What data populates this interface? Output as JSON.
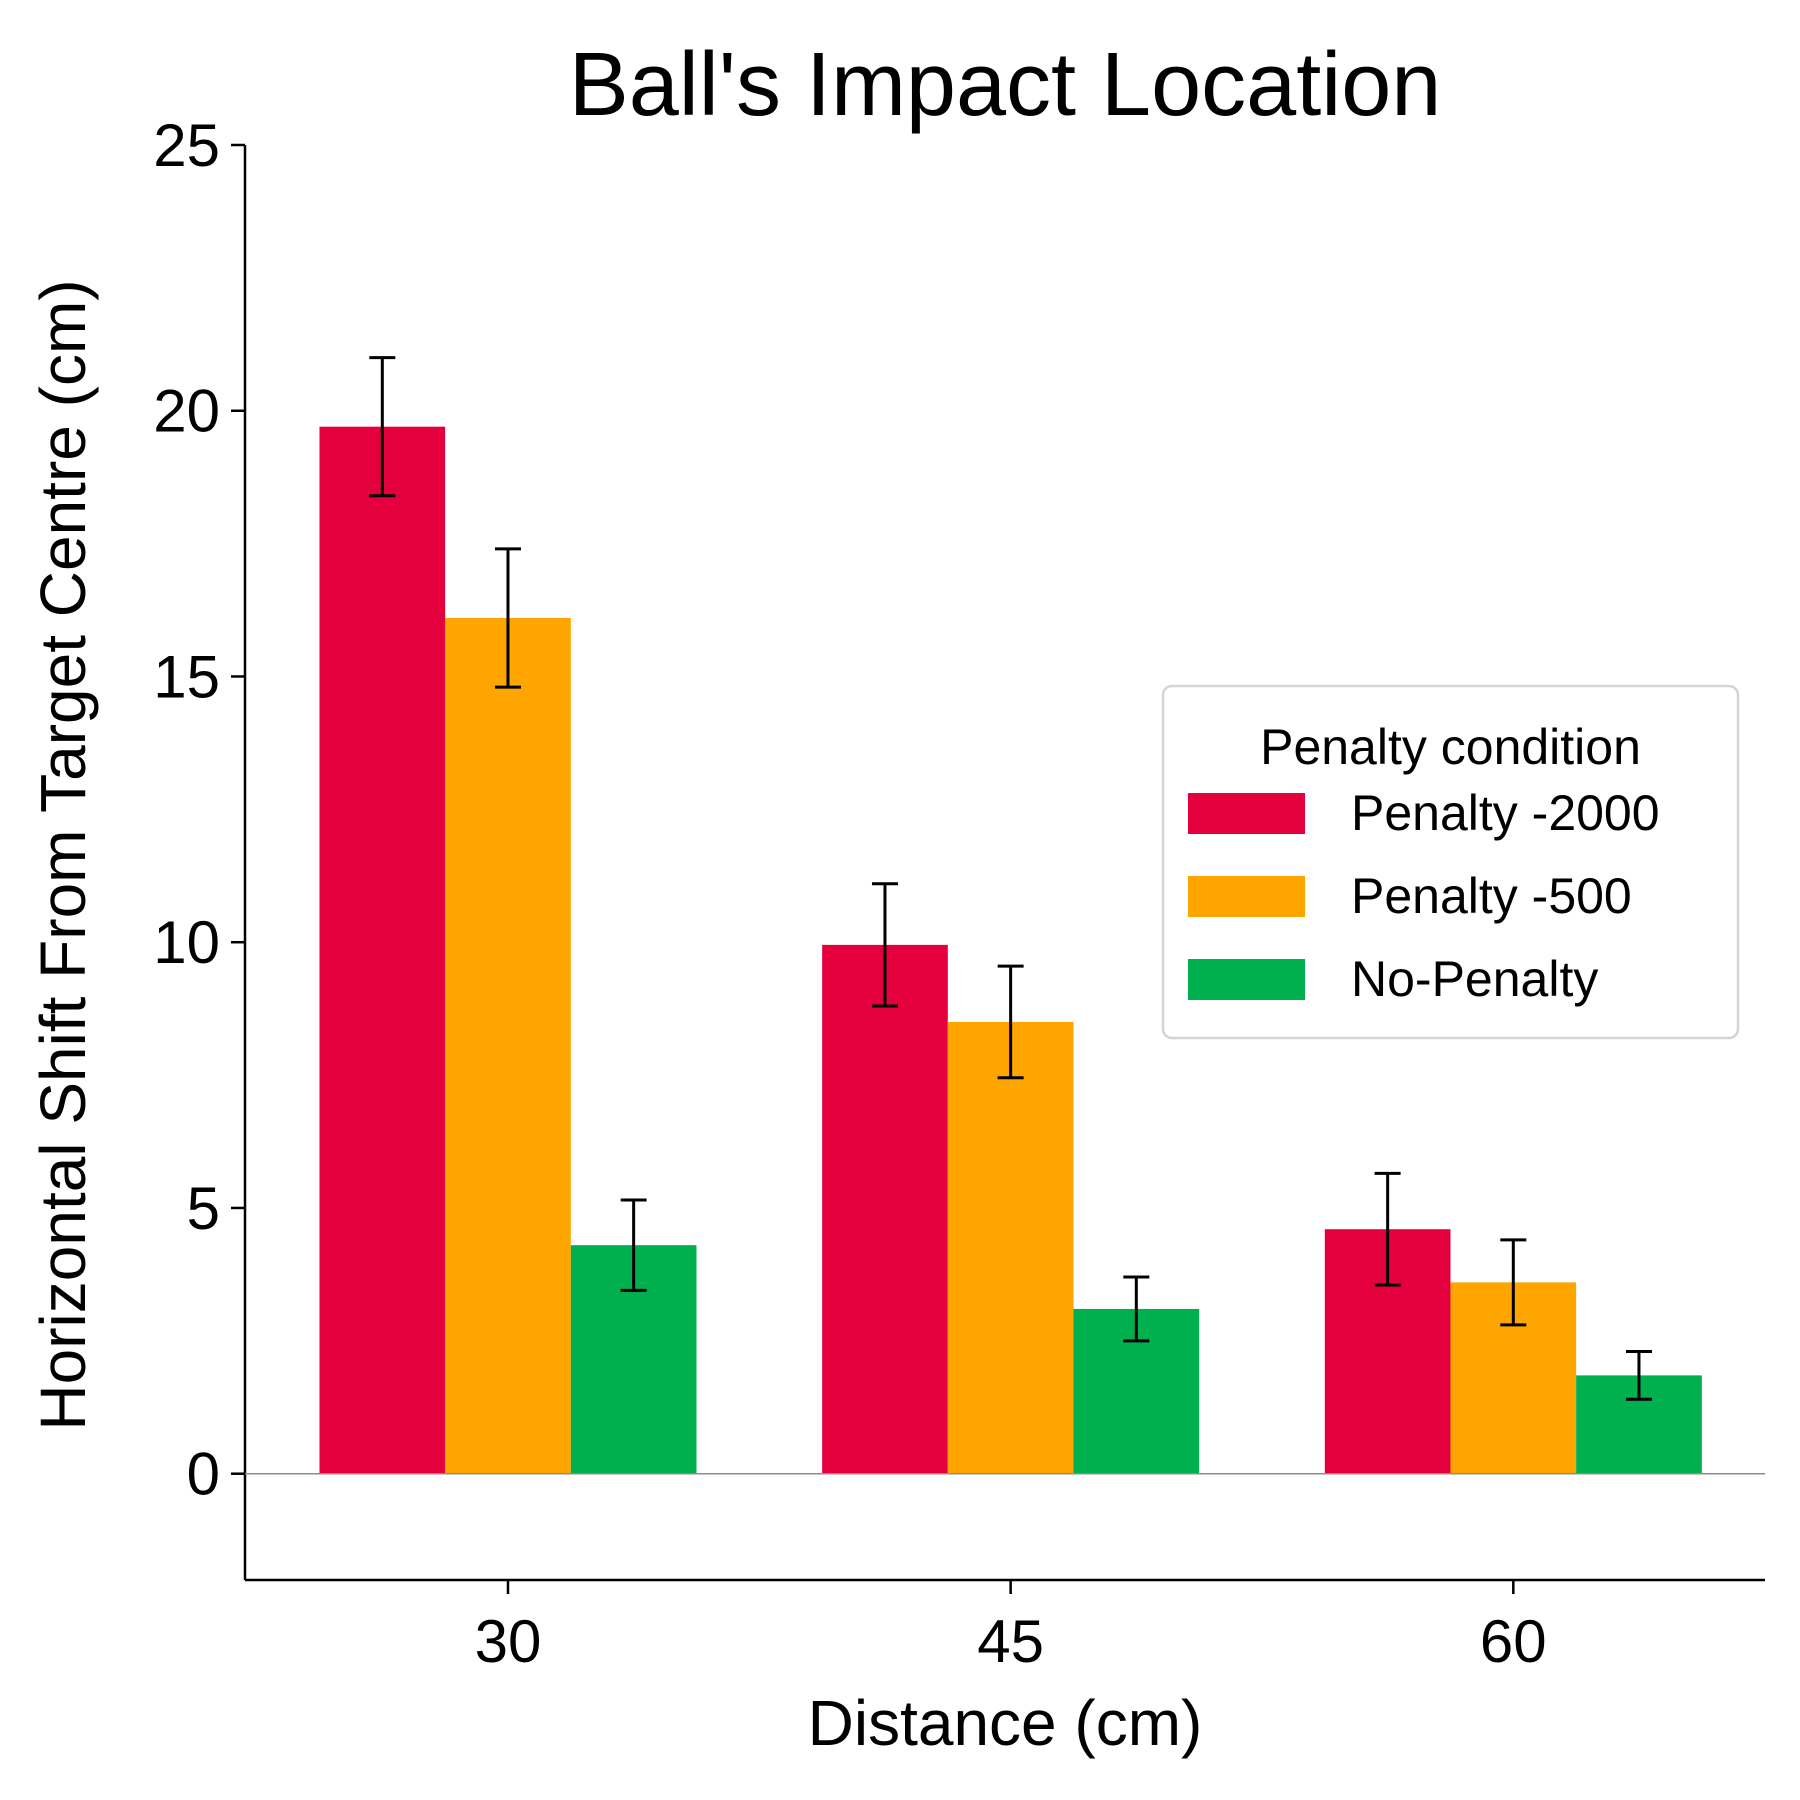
{
  "chart_data": {
    "type": "bar",
    "title": "Ball's Impact Location",
    "xlabel": "Distance (cm)",
    "ylabel": "Horizontal Shift From Target Centre (cm)",
    "categories": [
      "30",
      "45",
      "60"
    ],
    "ylim": [
      -2,
      25
    ],
    "yticks": [
      0,
      5,
      10,
      15,
      20,
      25
    ],
    "grid": false,
    "zero_line": true,
    "legend": {
      "title": "Penalty condition",
      "placement": "center-right"
    },
    "series": [
      {
        "name": "Penalty -2000",
        "color": "#e3003c",
        "values": [
          19.7,
          9.95,
          4.6
        ],
        "errors": [
          1.3,
          1.15,
          1.05
        ]
      },
      {
        "name": "Penalty -500",
        "color": "#ffa500",
        "values": [
          16.1,
          8.5,
          3.6
        ],
        "errors": [
          1.3,
          1.05,
          0.8
        ]
      },
      {
        "name": "No-Penalty",
        "color": "#00b04f",
        "values": [
          4.3,
          3.1,
          1.85
        ],
        "errors": [
          0.85,
          0.6,
          0.45
        ]
      }
    ]
  }
}
